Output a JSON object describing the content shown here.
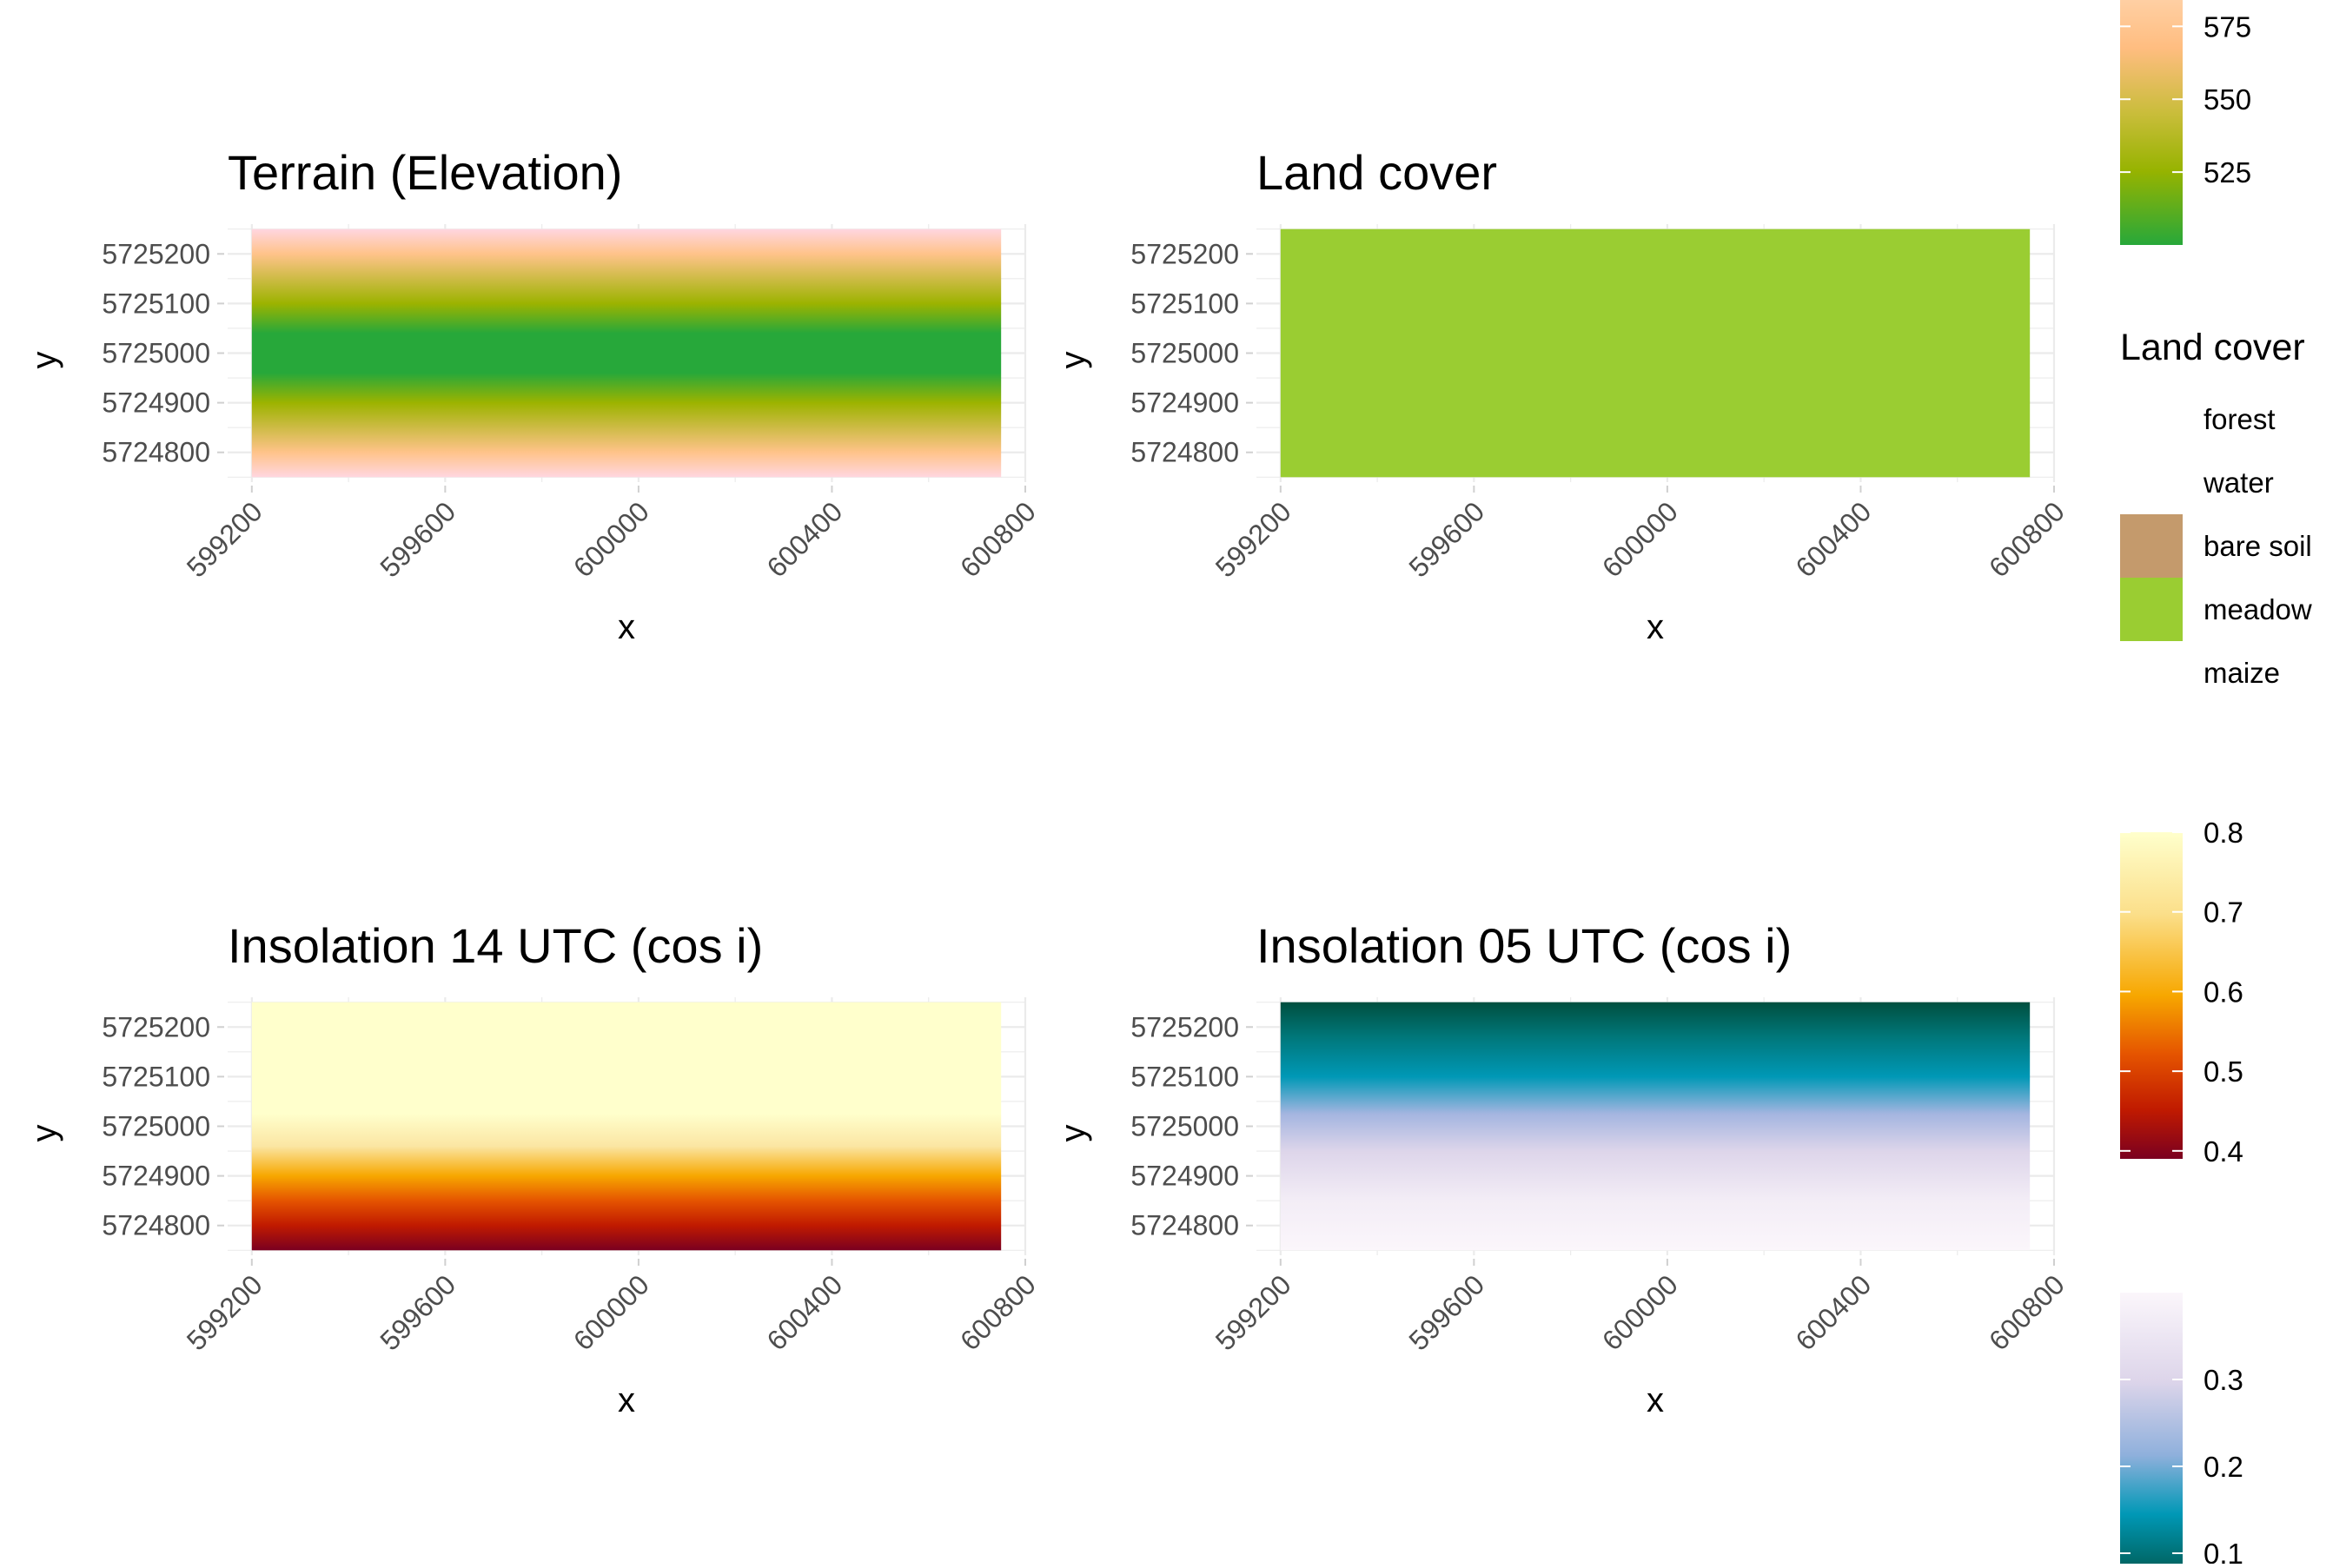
{
  "panels": [
    {
      "id": "terrain",
      "title": "Terrain (Elevation)",
      "xlabel": "x",
      "ylabel": "y",
      "x_ticks": [
        599200,
        599600,
        600000,
        600400,
        600800
      ],
      "y_ticks": [
        5724800,
        5724900,
        5725000,
        5725100,
        5725200
      ],
      "xlim": [
        599150,
        600800
      ],
      "ylim": [
        5724740,
        5725260
      ],
      "raster_extent": {
        "x": [
          599200,
          600750
        ],
        "y": [
          5724750,
          5725250
        ]
      },
      "raster_kind": "gradient",
      "raster_direction": "vertical",
      "raster_stops": [
        {
          "t": 0.0,
          "color": "#ffd6e0"
        },
        {
          "t": 0.1,
          "color": "#ffc38a"
        },
        {
          "t": 0.3,
          "color": "#9cb300"
        },
        {
          "t": 0.42,
          "color": "#27a83a"
        },
        {
          "t": 0.58,
          "color": "#27a83a"
        },
        {
          "t": 0.7,
          "color": "#9cb300"
        },
        {
          "t": 0.9,
          "color": "#ffc38a"
        },
        {
          "t": 1.0,
          "color": "#ffd6e0"
        }
      ]
    },
    {
      "id": "landcover",
      "title": "Land cover",
      "xlabel": "x",
      "ylabel": "y",
      "x_ticks": [
        599200,
        599600,
        600000,
        600400,
        600800
      ],
      "y_ticks": [
        5724800,
        5724900,
        5725000,
        5725100,
        5725200
      ],
      "xlim": [
        599150,
        600800
      ],
      "ylim": [
        5724740,
        5725260
      ],
      "raster_extent": {
        "x": [
          599200,
          600750
        ],
        "y": [
          5724750,
          5725250
        ]
      },
      "raster_kind": "solid",
      "raster_color": "#9acd32"
    },
    {
      "id": "insol14",
      "title": "Insolation 14 UTC (cos i)",
      "xlabel": "x",
      "ylabel": "y",
      "x_ticks": [
        599200,
        599600,
        600000,
        600400,
        600800
      ],
      "y_ticks": [
        5724800,
        5724900,
        5725000,
        5725100,
        5725200
      ],
      "xlim": [
        599150,
        600800
      ],
      "ylim": [
        5724740,
        5725260
      ],
      "raster_extent": {
        "x": [
          599200,
          600750
        ],
        "y": [
          5724750,
          5725250
        ]
      },
      "raster_kind": "gradient",
      "raster_direction": "vertical",
      "raster_stops": [
        {
          "t": 0.0,
          "color": "#ffffcc"
        },
        {
          "t": 0.45,
          "color": "#ffffcc"
        },
        {
          "t": 0.58,
          "color": "#fbe6a3"
        },
        {
          "t": 0.7,
          "color": "#f7a700"
        },
        {
          "t": 0.8,
          "color": "#e55400"
        },
        {
          "t": 0.9,
          "color": "#c01a00"
        },
        {
          "t": 1.0,
          "color": "#7a0020"
        }
      ]
    },
    {
      "id": "insol05",
      "title": "Insolation 05 UTC (cos i)",
      "xlabel": "x",
      "ylabel": "y",
      "x_ticks": [
        599200,
        599600,
        600000,
        600400,
        600800
      ],
      "y_ticks": [
        5724800,
        5724900,
        5725000,
        5725100,
        5725200
      ],
      "xlim": [
        599150,
        600800
      ],
      "ylim": [
        5724740,
        5725260
      ],
      "raster_extent": {
        "x": [
          599200,
          600750
        ],
        "y": [
          5724750,
          5725250
        ]
      },
      "raster_kind": "gradient",
      "raster_direction": "vertical",
      "raster_stops": [
        {
          "t": 0.0,
          "color": "#004f3f"
        },
        {
          "t": 0.14,
          "color": "#00777a"
        },
        {
          "t": 0.3,
          "color": "#0098b6"
        },
        {
          "t": 0.45,
          "color": "#a4b5e0"
        },
        {
          "t": 0.6,
          "color": "#ddd5ea"
        },
        {
          "t": 0.8,
          "color": "#f3edf6"
        },
        {
          "t": 1.0,
          "color": "#fbf6fb"
        }
      ]
    }
  ],
  "legends": {
    "elevation": {
      "labels": [
        "575",
        "550",
        "525"
      ],
      "values": [
        575,
        550,
        525
      ],
      "range": [
        500,
        590
      ],
      "stops": [
        {
          "t": 0.0,
          "color": "#ffd6b0"
        },
        {
          "t": 0.25,
          "color": "#ffbd80"
        },
        {
          "t": 0.5,
          "color": "#c9bd3a"
        },
        {
          "t": 0.72,
          "color": "#96b300"
        },
        {
          "t": 1.0,
          "color": "#27a83a"
        }
      ]
    },
    "landcover": {
      "title": "Land cover",
      "items": [
        {
          "label": "forest",
          "color": "#ffffff"
        },
        {
          "label": "water",
          "color": "#ffffff"
        },
        {
          "label": "bare soil",
          "color": "#c49a6c"
        },
        {
          "label": "meadow",
          "color": "#9acd32"
        },
        {
          "label": "maize",
          "color": "#ffffff"
        }
      ]
    },
    "insol14": {
      "labels": [
        "0.8",
        "0.7",
        "0.6",
        "0.5",
        "0.4"
      ],
      "values": [
        0.8,
        0.7,
        0.6,
        0.5,
        0.4
      ],
      "range": [
        0.39,
        0.8
      ],
      "stops": [
        {
          "t": 0.0,
          "color": "#ffffcc"
        },
        {
          "t": 0.25,
          "color": "#fbdf8a"
        },
        {
          "t": 0.5,
          "color": "#f7a700"
        },
        {
          "t": 0.68,
          "color": "#e55400"
        },
        {
          "t": 0.85,
          "color": "#c01a00"
        },
        {
          "t": 1.0,
          "color": "#7a0020"
        }
      ]
    },
    "insol05": {
      "labels": [
        "0.3",
        "0.2",
        "0.1"
      ],
      "values": [
        0.3,
        0.2,
        0.1
      ],
      "range": [
        0.06,
        0.4
      ],
      "stops": [
        {
          "t": 0.0,
          "color": "#fbf6fb"
        },
        {
          "t": 0.3,
          "color": "#ddd5ea"
        },
        {
          "t": 0.55,
          "color": "#8fb0dc"
        },
        {
          "t": 0.75,
          "color": "#0098b6"
        },
        {
          "t": 1.0,
          "color": "#004f3f"
        }
      ]
    }
  },
  "chart_data": [
    {
      "type": "heatmap",
      "title": "Terrain (Elevation)",
      "xlabel": "x",
      "ylabel": "y",
      "xlim": [
        599150,
        600800
      ],
      "ylim": [
        5724740,
        5725260
      ],
      "x_ticks": [
        599200,
        599600,
        600000,
        600400,
        600800
      ],
      "y_ticks": [
        5724800,
        5724900,
        5725000,
        5725100,
        5725200
      ],
      "legend_ticks": [
        525,
        550,
        575
      ],
      "grid": true
    },
    {
      "type": "heatmap",
      "title": "Land cover",
      "xlabel": "x",
      "ylabel": "y",
      "xlim": [
        599150,
        600800
      ],
      "ylim": [
        5724740,
        5725260
      ],
      "categories": [
        "forest",
        "water",
        "bare soil",
        "meadow",
        "maize"
      ],
      "visible_category": "meadow",
      "grid": true
    },
    {
      "type": "heatmap",
      "title": "Insolation 14 UTC (cos i)",
      "xlabel": "x",
      "ylabel": "y",
      "xlim": [
        599150,
        600800
      ],
      "ylim": [
        5724740,
        5725260
      ],
      "legend_ticks": [
        0.4,
        0.5,
        0.6,
        0.7,
        0.8
      ],
      "grid": true
    },
    {
      "type": "heatmap",
      "title": "Insolation 05 UTC (cos i)",
      "xlabel": "x",
      "ylabel": "y",
      "xlim": [
        599150,
        600800
      ],
      "ylim": [
        5724740,
        5725260
      ],
      "legend_ticks": [
        0.1,
        0.2,
        0.3
      ],
      "grid": true
    }
  ]
}
